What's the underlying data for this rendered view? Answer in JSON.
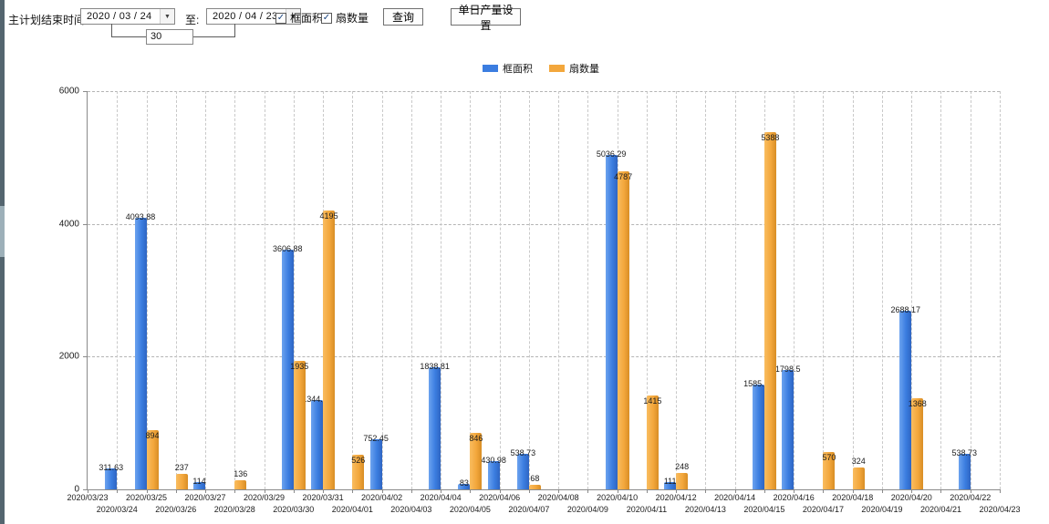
{
  "toolbar": {
    "label": "主计划结束时间:",
    "date_from": "2020 / 03 / 24",
    "to_label": "至:",
    "date_to": "2020 / 04 / 23",
    "interval_days": "30",
    "checkbox_area_label": "框面积",
    "checkbox_fan_label": "扇数量",
    "checkbox_checked_glyph": "✓",
    "dropdown_glyph": "▼",
    "query_button_label": "查询",
    "daily_output_button_label": "单日产量设置"
  },
  "chart_data": {
    "type": "bar",
    "title": "",
    "xlabel": "",
    "ylabel": "",
    "ylim": [
      0,
      6000
    ],
    "yticks": [
      0,
      2000,
      4000,
      6000
    ],
    "grid": true,
    "legend_position": "top",
    "categories": [
      "2020/03/23",
      "2020/03/24",
      "2020/03/25",
      "2020/03/26",
      "2020/03/27",
      "2020/03/28",
      "2020/03/29",
      "2020/03/30",
      "2020/03/31",
      "2020/04/01",
      "2020/04/02",
      "2020/04/03",
      "2020/04/04",
      "2020/04/05",
      "2020/04/06",
      "2020/04/07",
      "2020/04/08",
      "2020/04/09",
      "2020/04/10",
      "2020/04/11",
      "2020/04/12",
      "2020/04/13",
      "2020/04/14",
      "2020/04/15",
      "2020/04/16",
      "2020/04/17",
      "2020/04/18",
      "2020/04/19",
      "2020/04/20",
      "2020/04/21",
      "2020/04/22",
      "2020/04/23"
    ],
    "series": [
      {
        "name": "框面积",
        "color": "#3B7DE0",
        "values": [
          null,
          311.63,
          4093.88,
          null,
          114,
          null,
          null,
          3606.88,
          1344.95,
          null,
          752.45,
          null,
          1838.81,
          83,
          430.98,
          538.73,
          null,
          null,
          5036.29,
          null,
          111,
          null,
          null,
          1585.96,
          1798.5,
          null,
          null,
          null,
          2688.17,
          null,
          538.73,
          null
        ]
      },
      {
        "name": "扇数量",
        "color": "#F3A73C",
        "values": [
          null,
          null,
          894,
          237,
          null,
          136,
          null,
          1935,
          4195,
          526,
          null,
          null,
          null,
          846,
          null,
          68,
          null,
          null,
          4787,
          1415,
          248,
          null,
          null,
          5388,
          null,
          570,
          324,
          null,
          1368,
          null,
          null,
          null
        ]
      }
    ]
  }
}
